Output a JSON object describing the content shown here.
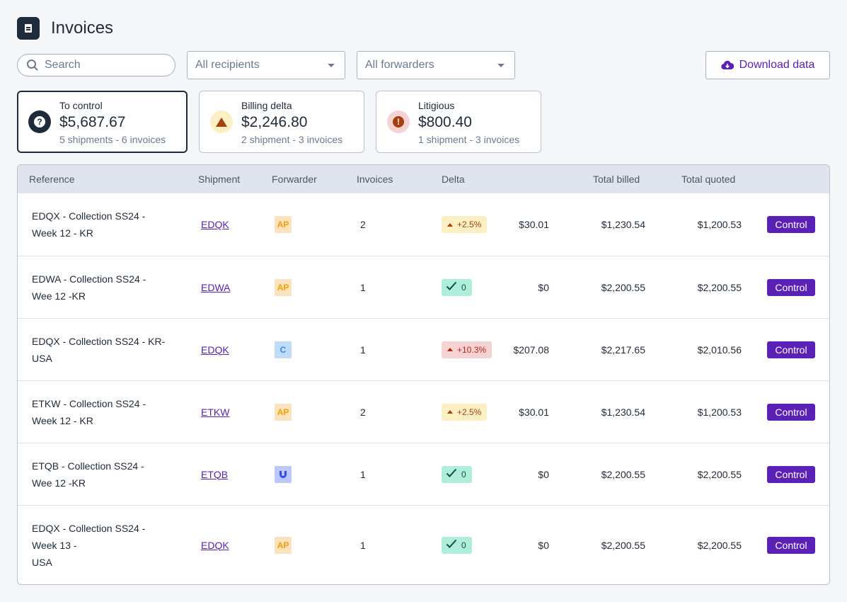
{
  "header": {
    "title": "Invoices",
    "icon": "document-icon"
  },
  "filters": {
    "search_placeholder": "Search",
    "recipients": "All recipients",
    "forwarders": "All forwarders",
    "download": "Download data"
  },
  "cards": [
    {
      "label": "To control",
      "amount": "$5,687.67",
      "sub": "5 shipments - 6 invoices",
      "icon": "question-icon",
      "color": "#1f2a3a"
    },
    {
      "label": "Billing delta",
      "amount": "$2,246.80",
      "sub": "2 shipment - 3 invoices",
      "icon": "warning-icon",
      "color": "#a3400c"
    },
    {
      "label": "Litigious",
      "amount": "$800.40",
      "sub": "1 shipment - 3 invoices",
      "icon": "alert-icon",
      "color": "#a3400c"
    }
  ],
  "table": {
    "columns": [
      "Reference",
      "Shipment",
      "Forwarder",
      "Invoices",
      "Delta",
      "Total billed",
      "Total quoted"
    ],
    "rows": [
      {
        "reference": [
          "EDQX - Collection SS24 -",
          "Week 12 - KR"
        ],
        "shipment": "EDQK",
        "forwarder": "AP",
        "invoices": "2",
        "delta_badge": "+2.5%",
        "delta_status": "warning",
        "delta": "$30.01",
        "billed": "$1,230.54",
        "quoted": "$1,200.53",
        "action": "Control"
      },
      {
        "reference": [
          "EDWA - Collection SS24 -",
          "Wee 12 -KR"
        ],
        "shipment": "EDWA",
        "forwarder": "AP",
        "invoices": "1",
        "delta_badge": "0",
        "delta_status": "ok",
        "delta": "$0",
        "billed": "$2,200.55",
        "quoted": "$2,200.55",
        "action": "Control"
      },
      {
        "reference": [
          "EDQX - Collection SS24 - KR-",
          "USA"
        ],
        "shipment": "EDQK",
        "forwarder": "C",
        "invoices": "1",
        "delta_badge": "+10.3%",
        "delta_status": "error",
        "delta": "$207.08",
        "billed": "$2,217.65",
        "quoted": "$2,010.56",
        "action": "Control"
      },
      {
        "reference": [
          "ETKW - Collection SS24 -",
          "Week 12 - KR"
        ],
        "shipment": "ETKW",
        "forwarder": "AP",
        "invoices": "2",
        "delta_badge": "+2.5%",
        "delta_status": "warning",
        "delta": "$30.01",
        "billed": "$1,230.54",
        "quoted": "$1,200.53",
        "action": "Control"
      },
      {
        "reference": [
          "ETQB - Collection SS24 -",
          "Wee 12 -KR"
        ],
        "shipment": "ETQB",
        "forwarder": "magnet",
        "invoices": "1",
        "delta_badge": "0",
        "delta_status": "ok",
        "delta": "$0",
        "billed": "$2,200.55",
        "quoted": "$2,200.55",
        "action": "Control"
      },
      {
        "reference": [
          "EDQX - Collection SS24 -",
          "Week 13 -",
          "USA"
        ],
        "shipment": "EDQK",
        "forwarder": "AP",
        "invoices": "1",
        "delta_badge": "0",
        "delta_status": "ok",
        "delta": "$0",
        "billed": "$2,200.55",
        "quoted": "$2,200.55",
        "action": "Control"
      }
    ]
  },
  "colors": {
    "accent": "#5b21b6",
    "warning_bg": "#fbf0c4",
    "warning_fg": "#a3400c",
    "error_bg": "#f6d3d3",
    "error_fg": "#b42318",
    "ok_bg": "#aeeedb",
    "ok_fg": "#134e4a"
  }
}
